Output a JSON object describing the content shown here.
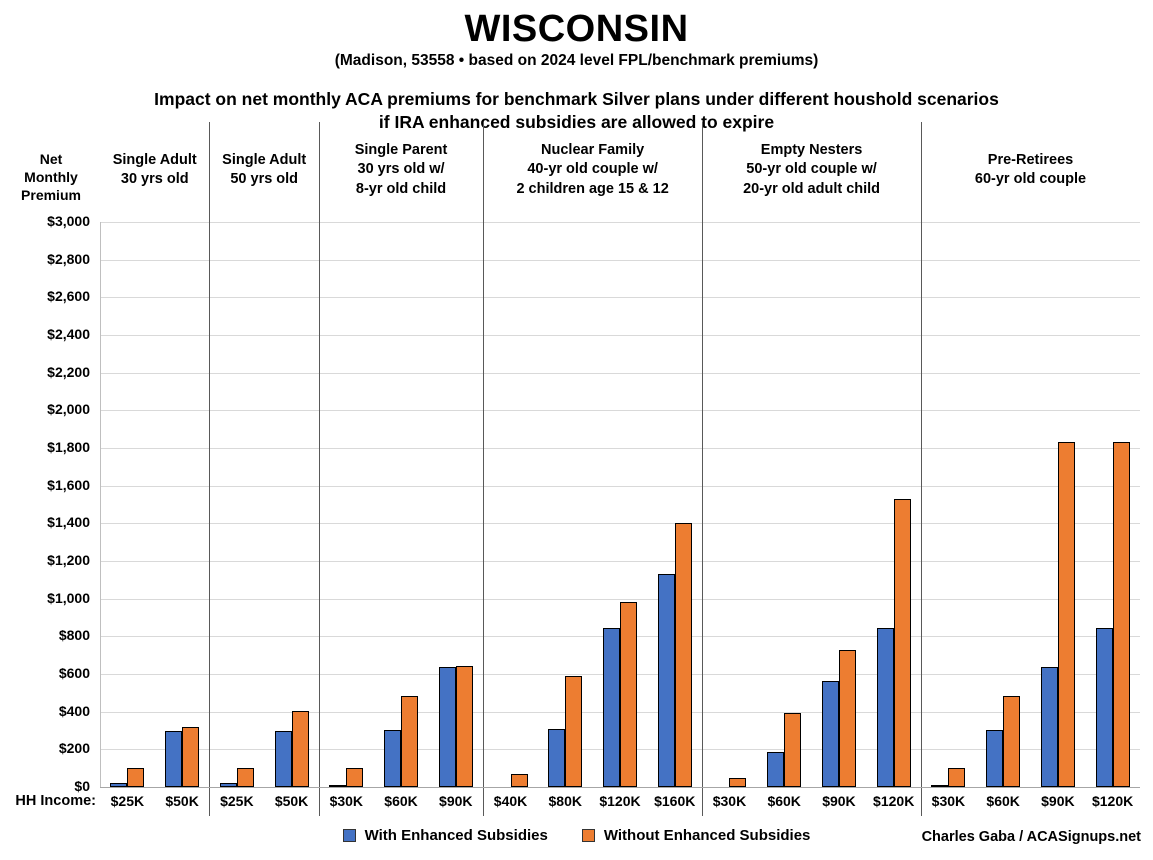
{
  "header": {
    "title": "WISCONSIN",
    "subtitle": "(Madison, 53558 • based on 2024 level FPL/benchmark premiums)",
    "description_line1": "Impact on net monthly ACA premiums for benchmark Silver plans under different houshold scenarios",
    "description_line2": "if IRA enhanced subsidies are allowed to expire"
  },
  "chart_data": {
    "type": "bar",
    "title": "WISCONSIN",
    "y_axis_title_lines": [
      "Net",
      "Monthly",
      "Premium"
    ],
    "x_axis_prefix": "HH Income:",
    "ylim": [
      0,
      3000
    ],
    "ytick_values": [
      0,
      200,
      400,
      600,
      800,
      1000,
      1200,
      1400,
      1600,
      1800,
      2000,
      2200,
      2400,
      2600,
      2800,
      3000
    ],
    "ytick_labels": [
      "$0",
      "$200",
      "$400",
      "$600",
      "$800",
      "$1,000",
      "$1,200",
      "$1,400",
      "$1,600",
      "$1,800",
      "$2,000",
      "$2,200",
      "$2,400",
      "$2,600",
      "$2,800",
      "$3,000"
    ],
    "grid": true,
    "legend_position": "bottom",
    "series": [
      {
        "name": "With Enhanced Subsidies",
        "color": "#4472C4"
      },
      {
        "name": "Without Enhanced Subsidies",
        "color": "#ED7D31"
      }
    ],
    "groups": [
      {
        "label_lines": [
          "Single Adult",
          "30 yrs old"
        ],
        "categories": [
          "$25K",
          "$50K"
        ],
        "with_enhanced": [
          20,
          295
        ],
        "without_enhanced": [
          100,
          320
        ]
      },
      {
        "label_lines": [
          "Single Adult",
          "50 yrs old"
        ],
        "categories": [
          "$25K",
          "$50K"
        ],
        "with_enhanced": [
          20,
          295
        ],
        "without_enhanced": [
          100,
          405
        ]
      },
      {
        "label_lines": [
          "Single Parent",
          "30 yrs old w/",
          "8-yr old child"
        ],
        "categories": [
          "$30K",
          "$60K",
          "$90K"
        ],
        "with_enhanced": [
          5,
          305,
          635
        ],
        "without_enhanced": [
          100,
          485,
          640
        ]
      },
      {
        "label_lines": [
          "Nuclear Family",
          "40-yr old couple w/",
          "2 children age 15 & 12"
        ],
        "categories": [
          "$40K",
          "$80K",
          "$120K",
          "$160K"
        ],
        "with_enhanced": [
          0,
          310,
          845,
          1130
        ],
        "without_enhanced": [
          70,
          590,
          980,
          1400
        ]
      },
      {
        "label_lines": [
          "Empty Nesters",
          "50-yr old couple w/",
          "20-yr old adult child"
        ],
        "categories": [
          "$30K",
          "$60K",
          "$90K",
          "$120K"
        ],
        "with_enhanced": [
          0,
          185,
          565,
          845
        ],
        "without_enhanced": [
          50,
          395,
          730,
          1530
        ]
      },
      {
        "label_lines": [
          "Pre-Retirees",
          "60-yr old couple"
        ],
        "categories": [
          "$30K",
          "$60K",
          "$90K",
          "$120K"
        ],
        "with_enhanced": [
          5,
          305,
          635,
          845
        ],
        "without_enhanced": [
          100,
          485,
          1830,
          1830
        ]
      }
    ]
  },
  "footer": {
    "credit": "Charles Gaba / ACASignups.net"
  }
}
